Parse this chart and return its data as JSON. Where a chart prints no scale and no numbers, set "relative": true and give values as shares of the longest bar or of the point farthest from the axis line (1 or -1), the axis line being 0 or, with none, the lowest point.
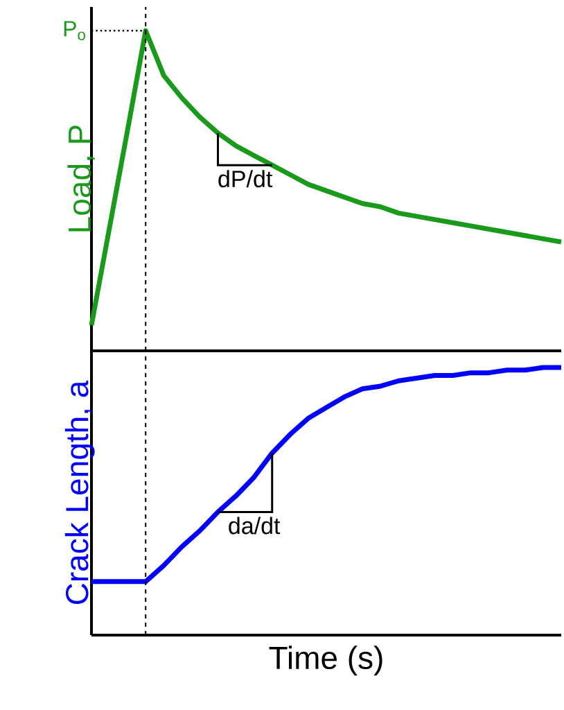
{
  "chart_data": [
    {
      "type": "line",
      "relative": true,
      "ylabel": "Load, P",
      "categories": [
        null,
        null,
        null,
        null,
        null,
        null,
        null,
        null,
        null,
        null,
        null,
        null,
        null,
        null,
        null,
        null,
        null,
        null,
        null,
        null,
        null,
        null,
        null,
        null,
        null,
        null,
        null
      ],
      "series": [
        {
          "color": "#1a9a1a",
          "values": [
            0.08,
            0.385,
            0.69,
            1.0,
            0.86,
            0.79,
            0.73,
            0.68,
            0.64,
            0.61,
            0.58,
            0.55,
            0.52,
            0.5,
            0.48,
            0.46,
            0.45,
            0.43,
            0.42,
            0.41,
            0.4,
            0.39,
            0.38,
            0.37,
            0.36,
            0.35,
            0.34
          ]
        }
      ],
      "annotations": [
        "dP/dt"
      ],
      "ref_lines": [
        {
          "axis": "y",
          "value": 1,
          "label": "P$_{o}$",
          "line_style": "dotted"
        }
      ]
    },
    {
      "type": "line",
      "relative": true,
      "ylabel": "Crack Length, a",
      "xlabel": "Time (s)",
      "categories": [
        null,
        null,
        null,
        null,
        null,
        null,
        null,
        null,
        null,
        null,
        null,
        null,
        null,
        null,
        null,
        null,
        null,
        null,
        null,
        null,
        null,
        null,
        null,
        null,
        null,
        null,
        null
      ],
      "series": [
        {
          "color": "#0000ff",
          "values": [
            0.2,
            0.2,
            0.2,
            0.2,
            0.26,
            0.33,
            0.39,
            0.46,
            0.52,
            0.59,
            0.68,
            0.75,
            0.81,
            0.85,
            0.89,
            0.92,
            0.93,
            0.95,
            0.96,
            0.97,
            0.97,
            0.98,
            0.98,
            0.99,
            0.99,
            1.0,
            1.0
          ]
        }
      ],
      "annotations": [
        "da/dt"
      ]
    }
  ]
}
